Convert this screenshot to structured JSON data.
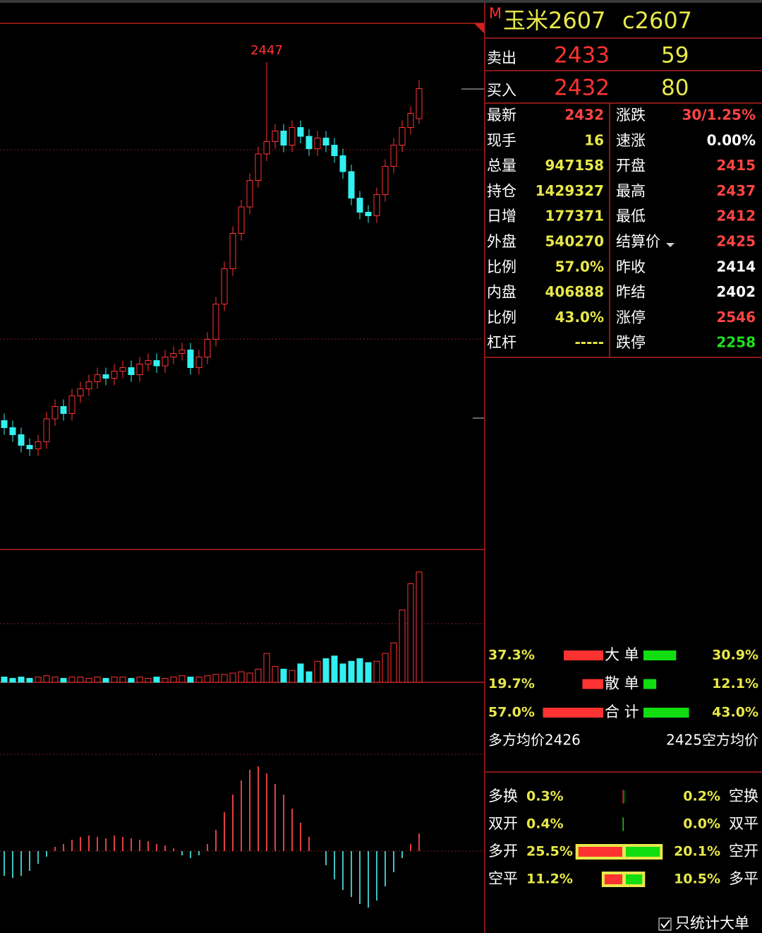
{
  "header": {
    "market": "M",
    "name": "玉米2607",
    "code": "c2607"
  },
  "orderbook": [
    {
      "label": "卖出",
      "price": "2433",
      "qty": "59"
    },
    {
      "label": "买入",
      "price": "2432",
      "qty": "80"
    }
  ],
  "stats": [
    [
      {
        "label": "最新",
        "value": "2432",
        "color": "#ff4444"
      },
      {
        "label": "涨跌",
        "value": "30/1.25%",
        "color": "#ff4444"
      }
    ],
    [
      {
        "label": "现手",
        "value": "16",
        "color": "#e8e84a"
      },
      {
        "label": "速涨",
        "value": "0.00%",
        "color": "#ffffff"
      }
    ],
    [
      {
        "label": "总量",
        "value": "947158",
        "color": "#e8e84a"
      },
      {
        "label": "开盘",
        "value": "2415",
        "color": "#ff4444"
      }
    ],
    [
      {
        "label": "持仓",
        "value": "1429327",
        "color": "#e8e84a"
      },
      {
        "label": "最高",
        "value": "2437",
        "color": "#ff4444"
      }
    ],
    [
      {
        "label": "日增",
        "value": "177371",
        "color": "#e8e84a"
      },
      {
        "label": "最低",
        "value": "2412",
        "color": "#ff4444"
      }
    ],
    [
      {
        "label": "外盘",
        "value": "540270",
        "color": "#e8e84a"
      },
      {
        "label": "结算价",
        "value": "2425",
        "color": "#ff4444"
      }
    ],
    [
      {
        "label": "比例",
        "value": "57.0%",
        "color": "#e8e84a"
      },
      {
        "label": "昨收",
        "value": "2414",
        "color": "#ffffff"
      }
    ],
    [
      {
        "label": "内盘",
        "value": "406888",
        "color": "#e8e84a"
      },
      {
        "label": "昨结",
        "value": "2402",
        "color": "#ffffff"
      }
    ],
    [
      {
        "label": "比例",
        "value": "43.0%",
        "color": "#e8e84a"
      },
      {
        "label": "涨停",
        "value": "2546",
        "color": "#ff4444"
      }
    ],
    [
      {
        "label": "杠杆",
        "value": "-----",
        "color": "#e8e84a"
      },
      {
        "label": "跌停",
        "value": "2258",
        "color": "#22dd22"
      }
    ]
  ],
  "flow": [
    {
      "left": {
        "value": 37.3,
        "label": "37.3%"
      },
      "label": "大 单",
      "right": {
        "value": 30.9,
        "label": "30.9%"
      }
    },
    {
      "left": {
        "value": 19.7,
        "label": "19.7%"
      },
      "label": "散 单",
      "right": {
        "value": 12.1,
        "label": "12.1%"
      }
    },
    {
      "left": {
        "value": 57.0,
        "label": "57.0%"
      },
      "label": "合 计",
      "right": {
        "value": 43.0,
        "label": "43.0%"
      }
    }
  ],
  "avg": {
    "long": "多方均价2426",
    "short": "2425空方均价"
  },
  "positions": [
    {
      "left_label": "多换",
      "left": {
        "value": 0.3,
        "label": "0.3%"
      },
      "right": {
        "value": 0.2,
        "label": "0.2%"
      },
      "right_label": "空换"
    },
    {
      "left_label": "双开",
      "left": {
        "value": 0.4,
        "label": "0.4%"
      },
      "right": {
        "value": 0.0,
        "label": "0.0%"
      },
      "right_label": "双平"
    },
    {
      "left_label": "多开",
      "left": {
        "value": 25.5,
        "label": "25.5%"
      },
      "right": {
        "value": 20.1,
        "label": "20.1%"
      },
      "right_label": "空开"
    },
    {
      "left_label": "空平",
      "left": {
        "value": 11.2,
        "label": "11.2%"
      },
      "right": {
        "value": 10.5,
        "label": "10.5%"
      },
      "right_label": "多平"
    }
  ],
  "checkbox": "只统计大单",
  "kline": {
    "high_label": "2447",
    "ylim": [
      2171,
      2469
    ],
    "open": [
      2244,
      2240,
      2236,
      2230,
      2228,
      2232,
      2245,
      2252,
      2248,
      2258,
      2262,
      2266,
      2270,
      2268,
      2272,
      2274,
      2270,
      2276,
      2278,
      2275,
      2280,
      2282,
      2284,
      2274,
      2280,
      2290,
      2310,
      2330,
      2350,
      2365,
      2380,
      2395,
      2402,
      2408,
      2400,
      2410,
      2405,
      2398,
      2404,
      2400,
      2394,
      2385,
      2370,
      2362,
      2360,
      2372,
      2388,
      2400,
      2410,
      2415
    ],
    "high": [
      2248,
      2244,
      2240,
      2234,
      2236,
      2249,
      2256,
      2256,
      2262,
      2266,
      2270,
      2274,
      2274,
      2276,
      2278,
      2278,
      2280,
      2282,
      2282,
      2284,
      2286,
      2288,
      2288,
      2284,
      2294,
      2314,
      2334,
      2354,
      2369,
      2384,
      2399,
      2447,
      2412,
      2412,
      2414,
      2414,
      2409,
      2408,
      2408,
      2404,
      2398,
      2389,
      2374,
      2366,
      2376,
      2392,
      2404,
      2414,
      2422,
      2437
    ],
    "low": [
      2236,
      2232,
      2226,
      2224,
      2224,
      2228,
      2241,
      2244,
      2244,
      2254,
      2258,
      2262,
      2264,
      2264,
      2268,
      2266,
      2266,
      2272,
      2271,
      2271,
      2276,
      2278,
      2270,
      2270,
      2276,
      2286,
      2306,
      2326,
      2346,
      2361,
      2376,
      2391,
      2398,
      2396,
      2396,
      2401,
      2394,
      2394,
      2396,
      2390,
      2381,
      2366,
      2358,
      2356,
      2356,
      2368,
      2384,
      2396,
      2406,
      2412
    ],
    "close": [
      2240,
      2236,
      2230,
      2228,
      2232,
      2245,
      2252,
      2248,
      2258,
      2262,
      2266,
      2270,
      2268,
      2272,
      2274,
      2270,
      2276,
      2278,
      2275,
      2280,
      2282,
      2284,
      2274,
      2280,
      2290,
      2310,
      2330,
      2350,
      2365,
      2380,
      2395,
      2402,
      2408,
      2400,
      2410,
      2405,
      2398,
      2404,
      2400,
      2394,
      2385,
      2370,
      2362,
      2360,
      2372,
      2388,
      2400,
      2410,
      2418,
      2432
    ],
    "volume": [
      4,
      3,
      4,
      3,
      4,
      5,
      4,
      3,
      4,
      4,
      3,
      4,
      3,
      4,
      4,
      3,
      4,
      3,
      4,
      3,
      4,
      5,
      4,
      4,
      5,
      6,
      6,
      7,
      8,
      7,
      10,
      22,
      12,
      10,
      9,
      14,
      8,
      16,
      18,
      20,
      14,
      16,
      18,
      15,
      16,
      22,
      30,
      55,
      75,
      84
    ],
    "vlim": [
      0,
      100
    ],
    "macd": [
      -35,
      -38,
      -35,
      -28,
      -18,
      -8,
      6,
      10,
      16,
      20,
      22,
      20,
      18,
      22,
      20,
      18,
      16,
      14,
      10,
      8,
      4,
      -6,
      -10,
      -6,
      10,
      30,
      55,
      80,
      100,
      115,
      120,
      110,
      95,
      80,
      60,
      40,
      20,
      0,
      -20,
      -40,
      -55,
      -65,
      -75,
      -80,
      -70,
      -50,
      -30,
      -10,
      10,
      25
    ],
    "mlim": [
      -116,
      237
    ]
  }
}
